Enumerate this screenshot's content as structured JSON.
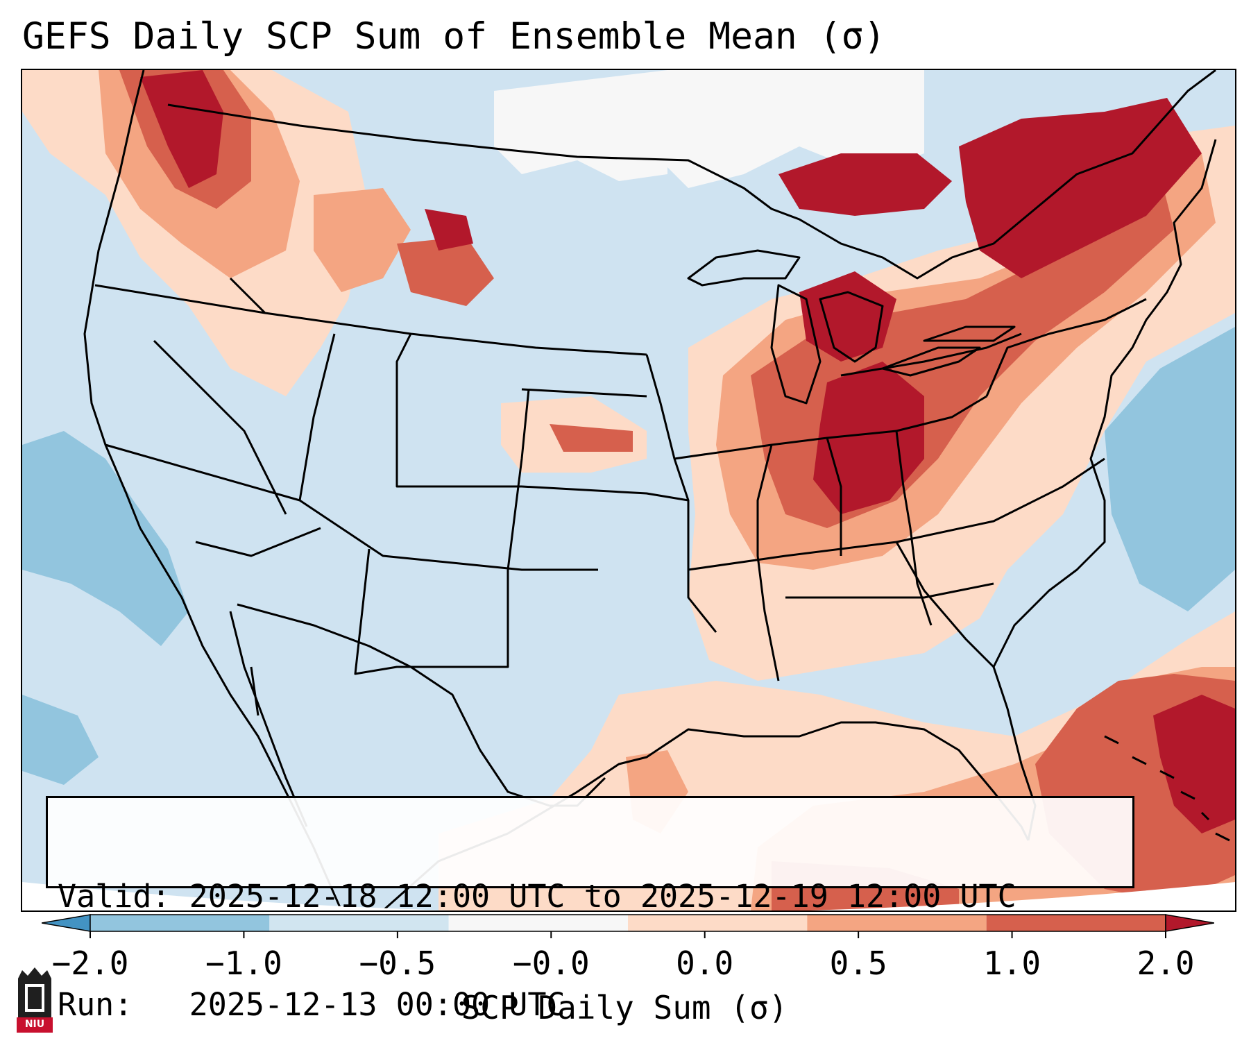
{
  "title": "GEFS Daily SCP Sum of Ensemble Mean (σ)",
  "info": {
    "valid_label": "Valid:",
    "valid_value": "2025-12-18 12:00 UTC to 2025-12-19 12:00 UTC",
    "run_label": "Run:",
    "run_value": "2025-12-13 00:00 UTC"
  },
  "colorbar": {
    "label": "SCP Daily Sum (σ)",
    "ticks": [
      "−2.0",
      "−1.0",
      "−0.5",
      "−0.0",
      "0.0",
      "0.5",
      "1.0",
      "2.0"
    ],
    "colors": [
      "#4393c3",
      "#92c5de",
      "#d1e5f0",
      "#f7f7f7",
      "#fddbc7",
      "#f4a582",
      "#d6604d",
      "#b2182b"
    ],
    "extend": "both"
  },
  "logo": {
    "text": "NIU"
  },
  "anomaly_regions": [
    {
      "region": "Pacific Northwest",
      "sigma_range": "0.5 to 2.0"
    },
    {
      "region": "Northern Rockies",
      "sigma_range": "0.5 to 2.0"
    },
    {
      "region": "Great Lakes / Ohio Valley",
      "sigma_range": "1.0 to 2.0"
    },
    {
      "region": "Tennessee Valley / Southeast",
      "sigma_range": "0.0 to 1.0"
    },
    {
      "region": "Western Atlantic near Bahamas",
      "sigma_range": "1.0 to 2.0"
    },
    {
      "region": "Western US interior",
      "sigma_range": "-0.5 to 0.0"
    },
    {
      "region": "Eastern Pacific offshore",
      "sigma_range": "-1.0 to -0.5"
    },
    {
      "region": "Western Atlantic offshore",
      "sigma_range": "-1.0 to -0.5"
    }
  ]
}
